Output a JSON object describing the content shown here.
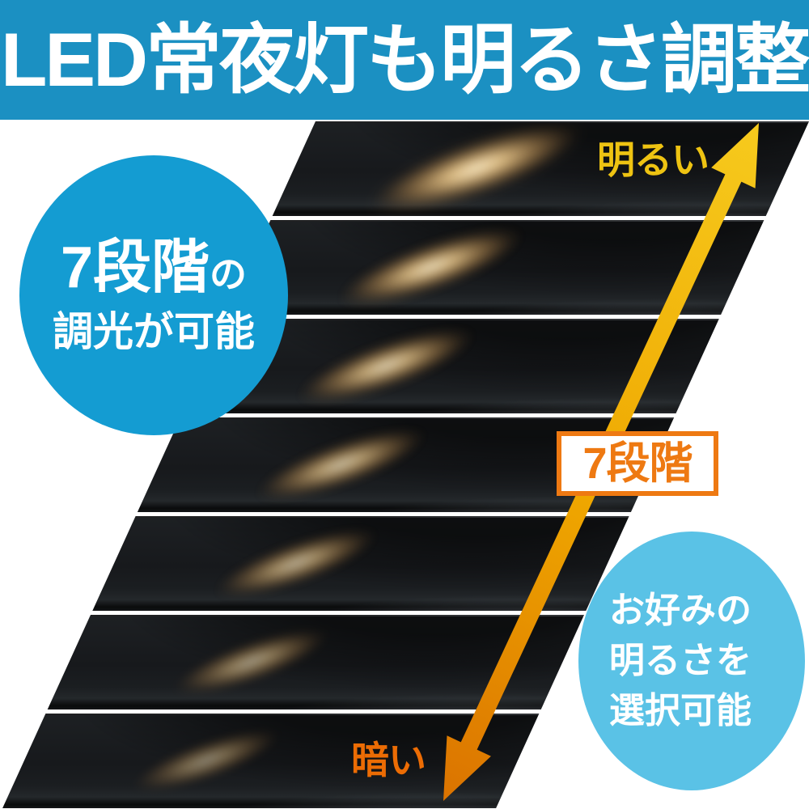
{
  "header": {
    "title": "LED常夜灯も明るさ調整",
    "bg_color": "#1b90c2"
  },
  "badge_top_left": {
    "line1_main": "7段階",
    "line1_small": "の",
    "line2": "調光が可能",
    "bg_color": "#149cd2"
  },
  "badge_bottom_right": {
    "line1": "お好みの",
    "line2": "明るさを",
    "line3": "選択可能",
    "bg_color": "#5ac2e6"
  },
  "axis_labels": {
    "bright": "明るい",
    "bright_color": "#eec312",
    "dark": "暗い",
    "dark_color": "#ec6c04"
  },
  "level_box": {
    "label": "7段階",
    "accent_color": "#ee7912"
  },
  "arrow": {
    "top_color": "#f6ca1d",
    "mid_color": "#efa700",
    "bottom_color": "#db7300"
  },
  "panels": [
    {
      "brightness_level": 7,
      "glow_opacity": 1.0,
      "glow_scale": 1.15
    },
    {
      "brightness_level": 6,
      "glow_opacity": 0.93,
      "glow_scale": 1.0
    },
    {
      "brightness_level": 5,
      "glow_opacity": 0.86,
      "glow_scale": 0.96
    },
    {
      "brightness_level": 4,
      "glow_opacity": 0.78,
      "glow_scale": 0.92
    },
    {
      "brightness_level": 3,
      "glow_opacity": 0.7,
      "glow_scale": 0.88
    },
    {
      "brightness_level": 2,
      "glow_opacity": 0.6,
      "glow_scale": 0.84
    },
    {
      "brightness_level": 1,
      "glow_opacity": 0.5,
      "glow_scale": 0.8
    }
  ]
}
